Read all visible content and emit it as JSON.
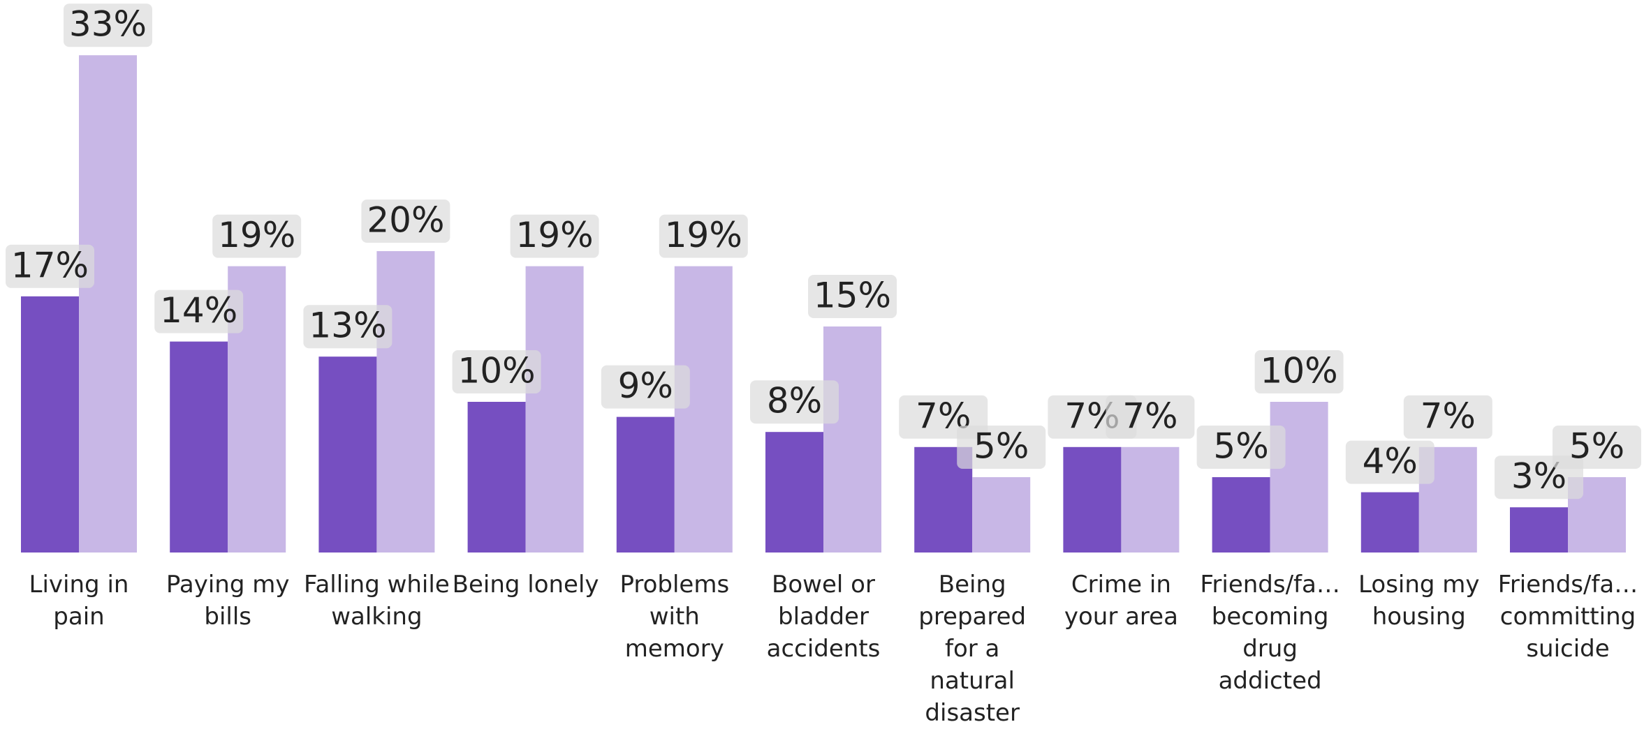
{
  "chart_data": {
    "type": "bar",
    "categories": [
      "Living in pain",
      "Paying my bills",
      "Falling while walking",
      "Being lonely",
      "Problems with memory",
      "Bowel or bladder accidents",
      "Being prepared for a natural disaster",
      "Crime in your area",
      "Friends/fa… becoming drug addicted",
      "Losing my housing",
      "Friends/fa… committing suicide"
    ],
    "series": [
      {
        "color": "#764fc1",
        "values": [
          17,
          14,
          13,
          10,
          9,
          8,
          7,
          7,
          5,
          4,
          3
        ],
        "value_labels": [
          "17%",
          "14%",
          "13%",
          "10%",
          "9%",
          "8%",
          "7%",
          "7%",
          "5%",
          "4%",
          "3%"
        ]
      },
      {
        "color": "#c8b7e6",
        "values": [
          33,
          19,
          20,
          19,
          19,
          15,
          5,
          7,
          10,
          7,
          5
        ],
        "value_labels": [
          "33%",
          "19%",
          "20%",
          "19%",
          "19%",
          "15%",
          "5%",
          "7%",
          "10%",
          "7%",
          "5%"
        ]
      }
    ]
  }
}
